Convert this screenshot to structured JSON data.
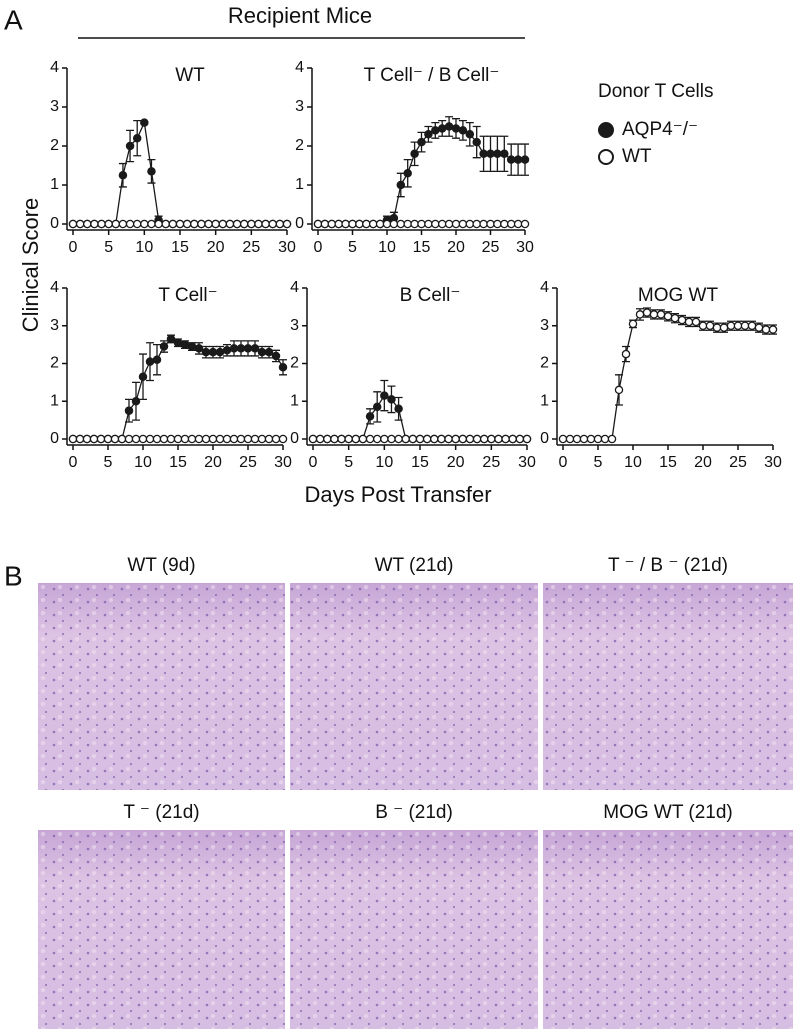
{
  "panel_a": {
    "label": "A",
    "header": "Recipient Mice",
    "y_label": "Clinical Score",
    "x_label": "Days Post Transfer",
    "legend_title": "Donor T Cells"
  },
  "chart_data": [
    {
      "type": "line",
      "title": "WT",
      "x": [
        0,
        1,
        2,
        3,
        4,
        5,
        6,
        7,
        8,
        9,
        10,
        11,
        12,
        13,
        14,
        15,
        16,
        17,
        18,
        19,
        20,
        21,
        22,
        23,
        24,
        25,
        26,
        27,
        28,
        29,
        30
      ],
      "xlim": [
        0,
        30
      ],
      "xticks": [
        0,
        5,
        10,
        15,
        20,
        25,
        30
      ],
      "ylim": [
        0,
        4
      ],
      "yticks": [
        0,
        1,
        2,
        3,
        4
      ],
      "series": [
        {
          "color": "#1a1a1a",
          "values": [
            0,
            0,
            0,
            0,
            0,
            0,
            0,
            1.25,
            2.0,
            2.2,
            2.6,
            1.35,
            0.1,
            0,
            0,
            0,
            0,
            0,
            0,
            0,
            0,
            0,
            0,
            0,
            0,
            0,
            0,
            0,
            0,
            0,
            0
          ],
          "errors": [
            0,
            0,
            0,
            0,
            0,
            0,
            0,
            0.3,
            0.4,
            0.45,
            0,
            0.3,
            0.1,
            0,
            0,
            0,
            0,
            0,
            0,
            0,
            0,
            0,
            0,
            0,
            0,
            0,
            0,
            0,
            0,
            0,
            0
          ]
        },
        {
          "color": "#ffffff",
          "values": [
            0,
            0,
            0,
            0,
            0,
            0,
            0,
            0,
            0,
            0,
            0,
            0,
            0,
            0,
            0,
            0,
            0,
            0,
            0,
            0,
            0,
            0,
            0,
            0,
            0,
            0,
            0,
            0,
            0,
            0,
            0
          ]
        }
      ]
    },
    {
      "type": "line",
      "title": "T Cell⁻ / B Cell⁻",
      "x": [
        0,
        1,
        2,
        3,
        4,
        5,
        6,
        7,
        8,
        9,
        10,
        11,
        12,
        13,
        14,
        15,
        16,
        17,
        18,
        19,
        20,
        21,
        22,
        23,
        24,
        25,
        26,
        27,
        28,
        29,
        30
      ],
      "xlim": [
        0,
        30
      ],
      "xticks": [
        0,
        5,
        10,
        15,
        20,
        25,
        30
      ],
      "ylim": [
        0,
        4
      ],
      "yticks": [
        0,
        1,
        2,
        3,
        4
      ],
      "series": [
        {
          "name": "AQP4⁻/⁻",
          "color": "#1a1a1a",
          "values": [
            0,
            0,
            0,
            0,
            0,
            0,
            0,
            0,
            0,
            0,
            0.1,
            0.15,
            1.0,
            1.3,
            1.8,
            2.1,
            2.3,
            2.4,
            2.45,
            2.5,
            2.45,
            2.4,
            2.3,
            2.1,
            1.8,
            1.8,
            1.8,
            1.8,
            1.65,
            1.65,
            1.65
          ],
          "errors": [
            0,
            0,
            0,
            0,
            0,
            0,
            0,
            0,
            0,
            0,
            0.1,
            0.15,
            0.3,
            0.35,
            0.3,
            0.25,
            0.2,
            0.2,
            0.2,
            0.25,
            0.25,
            0.25,
            0.3,
            0.4,
            0.45,
            0.45,
            0.45,
            0.45,
            0.4,
            0.4,
            0.4
          ]
        },
        {
          "name": "WT",
          "color": "#ffffff",
          "values": [
            0,
            0,
            0,
            0,
            0,
            0,
            0,
            0,
            0,
            0,
            0,
            0,
            0,
            0,
            0,
            0,
            0,
            0,
            0,
            0,
            0,
            0,
            0,
            0,
            0,
            0,
            0,
            0,
            0,
            0,
            0
          ]
        }
      ]
    },
    {
      "type": "line",
      "title": "T Cell⁻",
      "x": [
        0,
        1,
        2,
        3,
        4,
        5,
        6,
        7,
        8,
        9,
        10,
        11,
        12,
        13,
        14,
        15,
        16,
        17,
        18,
        19,
        20,
        21,
        22,
        23,
        24,
        25,
        26,
        27,
        28,
        29,
        30
      ],
      "xlim": [
        0,
        30
      ],
      "xticks": [
        0,
        5,
        10,
        15,
        20,
        25,
        30
      ],
      "ylim": [
        0,
        4
      ],
      "yticks": [
        0,
        1,
        2,
        3,
        4
      ],
      "series": [
        {
          "color": "#1a1a1a",
          "values": [
            0,
            0,
            0,
            0,
            0,
            0,
            0,
            0,
            0.75,
            1.0,
            1.65,
            2.05,
            2.1,
            2.45,
            2.65,
            2.55,
            2.5,
            2.45,
            2.4,
            2.3,
            2.3,
            2.3,
            2.35,
            2.4,
            2.4,
            2.4,
            2.4,
            2.3,
            2.3,
            2.2,
            1.9
          ],
          "errors": [
            0,
            0,
            0,
            0,
            0,
            0,
            0,
            0,
            0.3,
            0.5,
            0.6,
            0.5,
            0.4,
            0.15,
            0.1,
            0.1,
            0.1,
            0.1,
            0.15,
            0.15,
            0.15,
            0.15,
            0.15,
            0.2,
            0.2,
            0.2,
            0.2,
            0.15,
            0.15,
            0.15,
            0.2
          ]
        },
        {
          "color": "#ffffff",
          "values": [
            0,
            0,
            0,
            0,
            0,
            0,
            0,
            0,
            0,
            0,
            0,
            0,
            0,
            0,
            0,
            0,
            0,
            0,
            0,
            0,
            0,
            0,
            0,
            0,
            0,
            0,
            0,
            0,
            0,
            0,
            0
          ]
        }
      ]
    },
    {
      "type": "line",
      "title": "B Cell⁻",
      "x": [
        0,
        1,
        2,
        3,
        4,
        5,
        6,
        7,
        8,
        9,
        10,
        11,
        12,
        13,
        14,
        15,
        16,
        17,
        18,
        19,
        20,
        21,
        22,
        23,
        24,
        25,
        26,
        27,
        28,
        29,
        30
      ],
      "xlim": [
        0,
        30
      ],
      "xticks": [
        0,
        5,
        10,
        15,
        20,
        25,
        30
      ],
      "ylim": [
        0,
        4
      ],
      "yticks": [
        0,
        1,
        2,
        3,
        4
      ],
      "series": [
        {
          "color": "#1a1a1a",
          "values": [
            0,
            0,
            0,
            0,
            0,
            0,
            0,
            0,
            0.6,
            0.85,
            1.15,
            1.05,
            0.8,
            0,
            0,
            0,
            0,
            0,
            0,
            0,
            0,
            0,
            0,
            0,
            0,
            0,
            0,
            0,
            0,
            0,
            0
          ],
          "errors": [
            0,
            0,
            0,
            0,
            0,
            0,
            0,
            0,
            0.2,
            0.4,
            0.4,
            0.35,
            0.3,
            0,
            0,
            0,
            0,
            0,
            0,
            0,
            0,
            0,
            0,
            0,
            0,
            0,
            0,
            0,
            0,
            0,
            0
          ]
        },
        {
          "color": "#ffffff",
          "values": [
            0,
            0,
            0,
            0,
            0,
            0,
            0,
            0,
            0,
            0,
            0,
            0,
            0,
            0,
            0,
            0,
            0,
            0,
            0,
            0,
            0,
            0,
            0,
            0,
            0,
            0,
            0,
            0,
            0,
            0,
            0
          ]
        }
      ]
    },
    {
      "type": "line",
      "title": "MOG WT",
      "x": [
        0,
        1,
        2,
        3,
        4,
        5,
        6,
        7,
        8,
        9,
        10,
        11,
        12,
        13,
        14,
        15,
        16,
        17,
        18,
        19,
        20,
        21,
        22,
        23,
        24,
        25,
        26,
        27,
        28,
        29,
        30
      ],
      "xlim": [
        0,
        30
      ],
      "xticks": [
        0,
        5,
        10,
        15,
        20,
        25,
        30
      ],
      "ylim": [
        0,
        4
      ],
      "yticks": [
        0,
        1,
        2,
        3,
        4
      ],
      "series": [
        {
          "color": "#ffffff",
          "values": [
            0,
            0,
            0,
            0,
            0,
            0,
            0,
            0,
            1.3,
            2.25,
            3.05,
            3.3,
            3.35,
            3.3,
            3.3,
            3.25,
            3.2,
            3.15,
            3.1,
            3.1,
            3.0,
            3.0,
            2.95,
            2.95,
            3.0,
            3.0,
            3.0,
            3.0,
            2.95,
            2.9,
            2.9
          ],
          "errors": [
            0,
            0,
            0,
            0,
            0,
            0,
            0,
            0,
            0.4,
            0.2,
            0.1,
            0.15,
            0.12,
            0.12,
            0.12,
            0.12,
            0.12,
            0.12,
            0.12,
            0.12,
            0.12,
            0.12,
            0.12,
            0.12,
            0.12,
            0.12,
            0.12,
            0.12,
            0.12,
            0.12,
            0.12
          ]
        }
      ]
    }
  ],
  "panel_b": {
    "label": "B",
    "micrographs": [
      "WT (9d)",
      "WT (21d)",
      "T ⁻ / B ⁻ (21d)",
      "T ⁻ (21d)",
      "B ⁻ (21d)",
      "MOG WT (21d)"
    ]
  }
}
